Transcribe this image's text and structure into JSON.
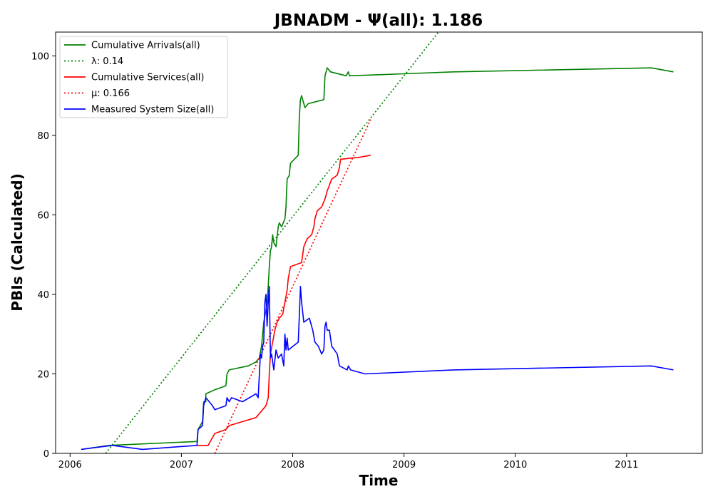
{
  "chart_data": {
    "type": "line",
    "title": "JBNADM -  Ψ(all): 1.186",
    "xlabel": "Time",
    "ylabel": "PBIs (Calculated)",
    "xlim": [
      2005.87,
      2011.68
    ],
    "ylim": [
      0,
      106
    ],
    "x_ticks": [
      2006,
      2007,
      2008,
      2009,
      2010,
      2011
    ],
    "x_tick_labels": [
      "2006",
      "2007",
      "2008",
      "2009",
      "2010",
      "2011"
    ],
    "y_ticks": [
      0,
      20,
      40,
      60,
      80,
      100
    ],
    "y_tick_labels": [
      "0",
      "20",
      "40",
      "60",
      "80",
      "100"
    ],
    "grid": false,
    "legend_position": "top-left",
    "series": [
      {
        "name": "Cumulative Arrivals(all)",
        "color": "#008000",
        "style": "solid",
        "points": [
          [
            2006.1,
            1
          ],
          [
            2006.35,
            2
          ],
          [
            2007.14,
            3
          ],
          [
            2007.15,
            6
          ],
          [
            2007.19,
            8
          ],
          [
            2007.2,
            13
          ],
          [
            2007.22,
            13
          ],
          [
            2007.22,
            15
          ],
          [
            2007.3,
            16
          ],
          [
            2007.4,
            17
          ],
          [
            2007.41,
            20
          ],
          [
            2007.43,
            21
          ],
          [
            2007.6,
            22
          ],
          [
            2007.67,
            23
          ],
          [
            2007.7,
            24
          ],
          [
            2007.72,
            27
          ],
          [
            2007.73,
            30
          ],
          [
            2007.74,
            33
          ],
          [
            2007.76,
            36
          ],
          [
            2007.77,
            38
          ],
          [
            2007.78,
            42
          ],
          [
            2007.79,
            47
          ],
          [
            2007.8,
            51
          ],
          [
            2007.81,
            52
          ],
          [
            2007.82,
            55
          ],
          [
            2007.83,
            53
          ],
          [
            2007.85,
            52
          ],
          [
            2007.87,
            57
          ],
          [
            2007.88,
            58
          ],
          [
            2007.9,
            57
          ],
          [
            2007.93,
            59
          ],
          [
            2007.94,
            62
          ],
          [
            2007.95,
            69
          ],
          [
            2007.97,
            70
          ],
          [
            2007.98,
            73
          ],
          [
            2008.05,
            75
          ],
          [
            2008.06,
            85
          ],
          [
            2008.07,
            89
          ],
          [
            2008.08,
            90
          ],
          [
            2008.1,
            88
          ],
          [
            2008.11,
            87
          ],
          [
            2008.14,
            88
          ],
          [
            2008.28,
            89
          ],
          [
            2008.29,
            95
          ],
          [
            2008.31,
            97
          ],
          [
            2008.34,
            96
          ],
          [
            2008.48,
            95
          ],
          [
            2008.5,
            96
          ],
          [
            2008.51,
            95
          ],
          [
            2009.0,
            95.5
          ],
          [
            2009.45,
            96
          ],
          [
            2011.22,
            97
          ],
          [
            2011.42,
            96
          ]
        ]
      },
      {
        "name": "λ: 0.14",
        "color": "#008000",
        "style": "dotted",
        "points": [
          [
            2006.32,
            0
          ],
          [
            2009.31,
            106
          ]
        ]
      },
      {
        "name": "Cumulative Services(all)",
        "color": "#ff0000",
        "style": "solid",
        "points": [
          [
            2007.14,
            2
          ],
          [
            2007.24,
            2
          ],
          [
            2007.3,
            5
          ],
          [
            2007.4,
            6
          ],
          [
            2007.43,
            7
          ],
          [
            2007.55,
            8
          ],
          [
            2007.67,
            9
          ],
          [
            2007.73,
            11
          ],
          [
            2007.76,
            12
          ],
          [
            2007.78,
            14
          ],
          [
            2007.79,
            20
          ],
          [
            2007.8,
            25
          ],
          [
            2007.82,
            28
          ],
          [
            2007.84,
            31
          ],
          [
            2007.86,
            33
          ],
          [
            2007.88,
            34
          ],
          [
            2007.91,
            35
          ],
          [
            2007.93,
            38
          ],
          [
            2007.95,
            41
          ],
          [
            2007.96,
            44
          ],
          [
            2007.98,
            47
          ],
          [
            2008.08,
            48
          ],
          [
            2008.1,
            52
          ],
          [
            2008.13,
            54
          ],
          [
            2008.17,
            55
          ],
          [
            2008.19,
            57
          ],
          [
            2008.2,
            59
          ],
          [
            2008.22,
            61
          ],
          [
            2008.26,
            62
          ],
          [
            2008.29,
            64
          ],
          [
            2008.31,
            66
          ],
          [
            2008.35,
            69
          ],
          [
            2008.4,
            70
          ],
          [
            2008.42,
            72
          ],
          [
            2008.43,
            74
          ],
          [
            2008.6,
            74.5
          ],
          [
            2008.7,
            75
          ]
        ]
      },
      {
        "name": "μ: 0.166",
        "color": "#ff0000",
        "style": "dotted",
        "points": [
          [
            2007.3,
            0
          ],
          [
            2008.7,
            84
          ]
        ]
      },
      {
        "name": "Measured System Size(all)",
        "color": "#0000ff",
        "style": "solid",
        "points": [
          [
            2006.1,
            1
          ],
          [
            2006.38,
            2
          ],
          [
            2006.65,
            1
          ],
          [
            2007.14,
            2
          ],
          [
            2007.15,
            6
          ],
          [
            2007.19,
            7
          ],
          [
            2007.2,
            12
          ],
          [
            2007.22,
            14
          ],
          [
            2007.25,
            13
          ],
          [
            2007.28,
            12
          ],
          [
            2007.3,
            11
          ],
          [
            2007.4,
            12
          ],
          [
            2007.41,
            14
          ],
          [
            2007.43,
            13
          ],
          [
            2007.45,
            14
          ],
          [
            2007.55,
            13
          ],
          [
            2007.67,
            15
          ],
          [
            2007.69,
            14
          ],
          [
            2007.71,
            25
          ],
          [
            2007.72,
            24
          ],
          [
            2007.73,
            27
          ],
          [
            2007.74,
            28
          ],
          [
            2007.75,
            38
          ],
          [
            2007.76,
            40
          ],
          [
            2007.77,
            32
          ],
          [
            2007.78,
            38
          ],
          [
            2007.79,
            42
          ],
          [
            2007.8,
            24
          ],
          [
            2007.81,
            25
          ],
          [
            2007.83,
            21
          ],
          [
            2007.85,
            26
          ],
          [
            2007.87,
            24
          ],
          [
            2007.9,
            25
          ],
          [
            2007.92,
            22
          ],
          [
            2007.93,
            30
          ],
          [
            2007.94,
            26
          ],
          [
            2007.95,
            29
          ],
          [
            2007.96,
            26
          ],
          [
            2008.05,
            28
          ],
          [
            2008.06,
            35
          ],
          [
            2008.07,
            42
          ],
          [
            2008.08,
            38
          ],
          [
            2008.1,
            33
          ],
          [
            2008.15,
            34
          ],
          [
            2008.18,
            31
          ],
          [
            2008.2,
            28
          ],
          [
            2008.23,
            27
          ],
          [
            2008.26,
            25
          ],
          [
            2008.28,
            26
          ],
          [
            2008.29,
            32
          ],
          [
            2008.3,
            33
          ],
          [
            2008.31,
            31
          ],
          [
            2008.33,
            31
          ],
          [
            2008.35,
            27
          ],
          [
            2008.4,
            25
          ],
          [
            2008.42,
            22
          ],
          [
            2008.49,
            21
          ],
          [
            2008.5,
            22
          ],
          [
            2008.52,
            21
          ],
          [
            2008.65,
            20
          ],
          [
            2009.45,
            21
          ],
          [
            2011.22,
            22
          ],
          [
            2011.42,
            21
          ]
        ]
      }
    ]
  }
}
